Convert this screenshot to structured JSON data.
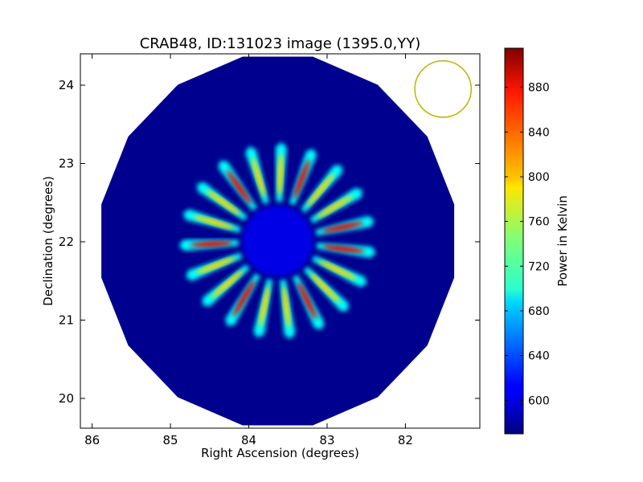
{
  "chart_data": {
    "type": "heatmap",
    "title": "CRAB48, ID:131023 image (1395.0,YY)",
    "xlabel": "Right Ascension (degrees)",
    "ylabel": "Declination (degrees)",
    "xlim": [
      86.15,
      81.05
    ],
    "ylim": [
      19.62,
      24.4
    ],
    "x_ticks": [
      86,
      85,
      84,
      83,
      82
    ],
    "y_ticks": [
      20,
      21,
      22,
      23,
      24
    ],
    "x_tick_labels": [
      "86",
      "85",
      "84",
      "83",
      "82"
    ],
    "y_tick_labels": [
      "20",
      "21",
      "22",
      "23",
      "24"
    ],
    "grid": false,
    "colorbar": {
      "label": "Power in Kelvin",
      "colormap": "jet",
      "range": [
        570,
        915
      ],
      "ticks": [
        600,
        640,
        680,
        720,
        760,
        800,
        840,
        880
      ],
      "tick_labels": [
        "600",
        "640",
        "680",
        "720",
        "760",
        "800",
        "840",
        "880"
      ]
    },
    "sky_disk": {
      "center_ra": 83.63,
      "center_dec": 22.01,
      "radius_deg": 2.4,
      "background_value": 575
    },
    "source_pattern": {
      "spokes": 19,
      "inner_radius_deg": 0.5,
      "outer_radius_deg": 1.2,
      "peak_value": 880
    },
    "beam": {
      "center_ra": 81.52,
      "center_dec": 23.95,
      "radius_deg": 0.36,
      "color": "#c0b400"
    }
  }
}
